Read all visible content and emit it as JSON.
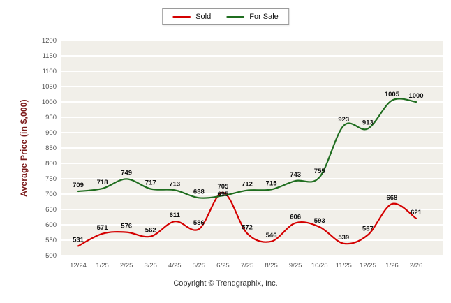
{
  "footer": {
    "copyright": "Copyright © Trendgraphix, Inc."
  },
  "chart_data": {
    "type": "line",
    "categories": [
      "12/24",
      "1/25",
      "2/25",
      "3/25",
      "4/25",
      "5/25",
      "6/25",
      "7/25",
      "8/25",
      "9/25",
      "10/25",
      "11/25",
      "12/25",
      "1/26",
      "2/26"
    ],
    "series": [
      {
        "name": "Sold",
        "color": "#d40000",
        "values": [
          531,
          571,
          576,
          562,
          611,
          586,
          705,
          572,
          546,
          606,
          593,
          539,
          567,
          668,
          621
        ]
      },
      {
        "name": "For Sale",
        "color": "#1f6d1f",
        "values": [
          709,
          718,
          749,
          717,
          713,
          688,
          695,
          712,
          715,
          743,
          755,
          923,
          913,
          1005,
          1000
        ]
      }
    ],
    "title": "",
    "xlabel": "",
    "ylabel": "Average Price (in $,000)",
    "ylim": [
      500,
      1200
    ],
    "ytick_step": 50,
    "grid": true,
    "legend_position": "top",
    "plot_bg": "#f1efe9",
    "grid_color": "#ffffff"
  }
}
